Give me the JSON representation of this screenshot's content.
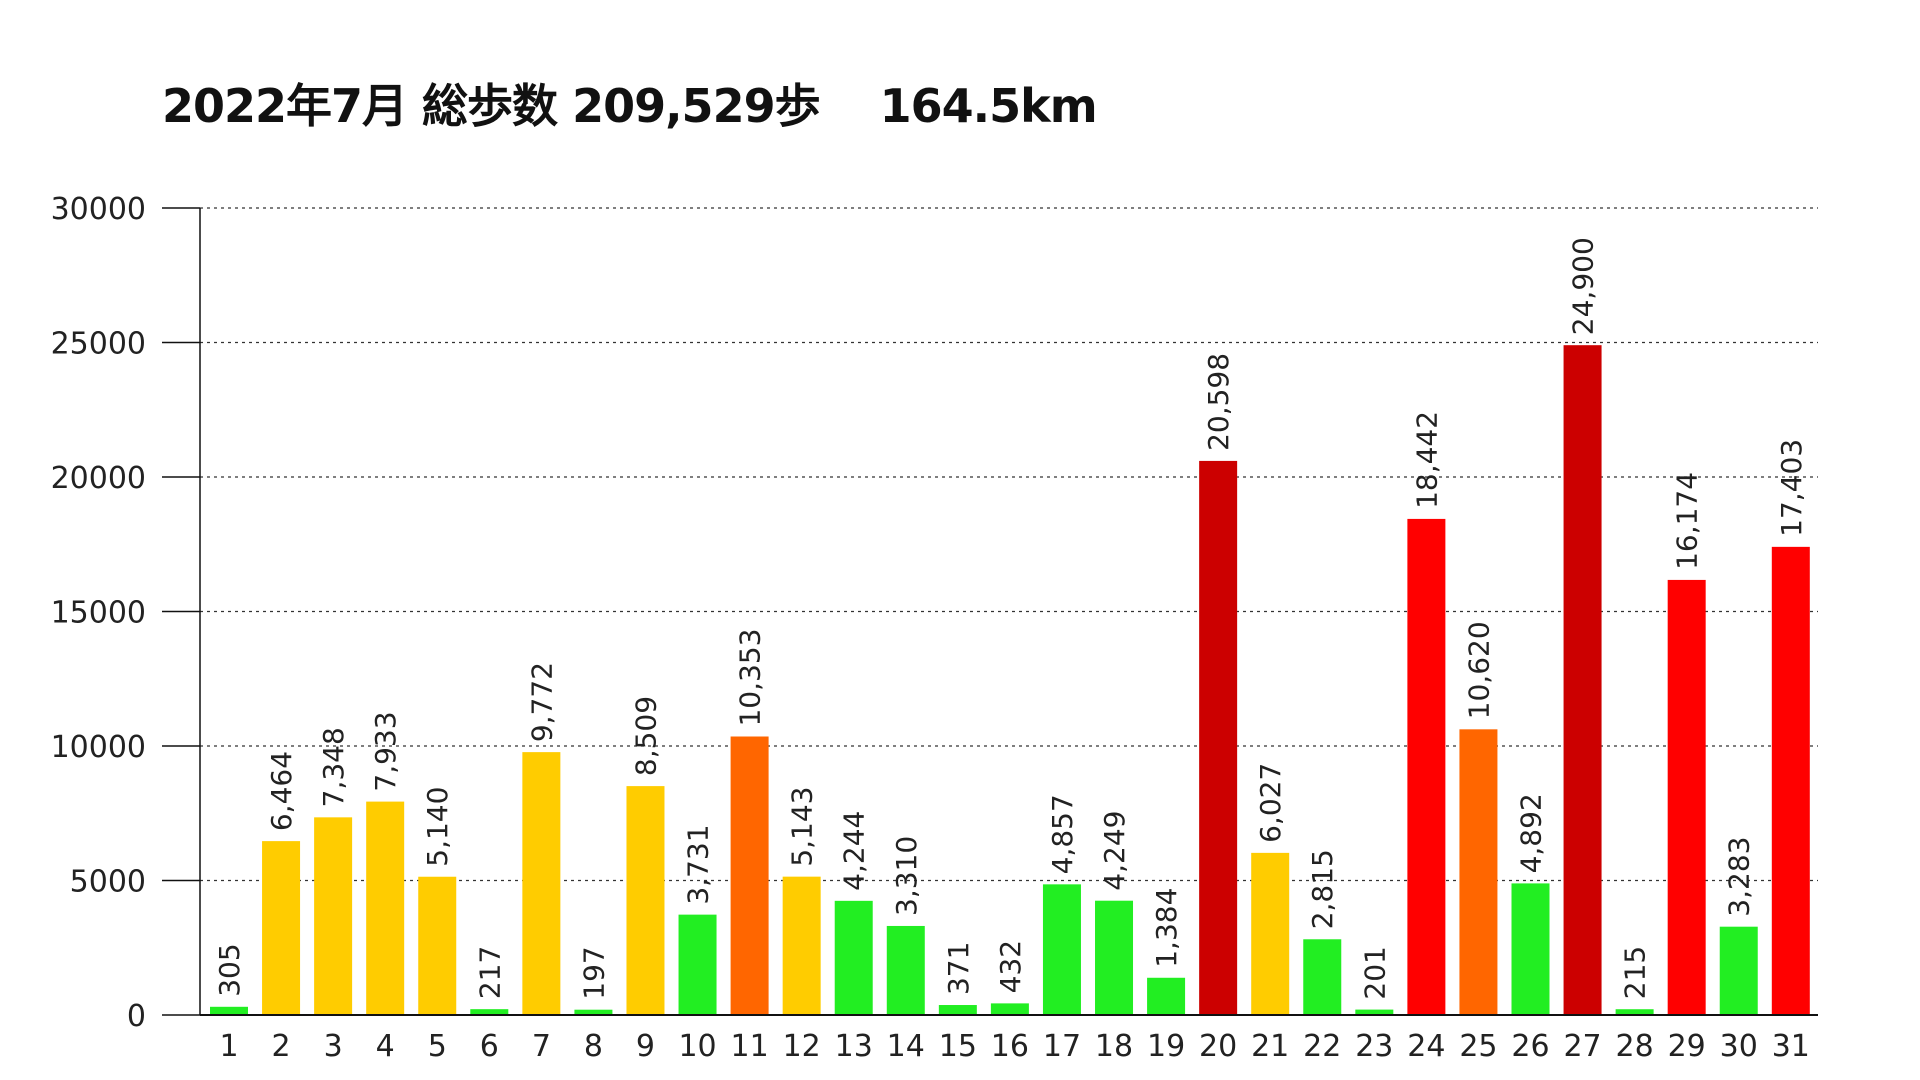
{
  "chart_data": {
    "type": "bar",
    "title": "2022年7月 総歩数 209,529歩　 164.5km",
    "xlabel": "",
    "ylabel": "",
    "ylim": [
      0,
      30000
    ],
    "yticks": [
      0,
      5000,
      10000,
      15000,
      20000,
      25000,
      30000
    ],
    "grid": true,
    "legend": "none",
    "categories": [
      "1",
      "2",
      "3",
      "4",
      "5",
      "6",
      "7",
      "8",
      "9",
      "10",
      "11",
      "12",
      "13",
      "14",
      "15",
      "16",
      "17",
      "18",
      "19",
      "20",
      "21",
      "22",
      "23",
      "24",
      "25",
      "26",
      "27",
      "28",
      "29",
      "30",
      "31"
    ],
    "values": [
      305,
      6464,
      7348,
      7933,
      5140,
      217,
      9772,
      197,
      8509,
      3731,
      10353,
      5143,
      4244,
      3310,
      371,
      432,
      4857,
      4249,
      1384,
      20598,
      6027,
      2815,
      201,
      18442,
      10620,
      4892,
      24900,
      215,
      16174,
      3283,
      17403
    ],
    "value_labels": [
      "305",
      "6,464",
      "7,348",
      "7,933",
      "5,140",
      "217",
      "9,772",
      "197",
      "8,509",
      "3,731",
      "10,353",
      "5,143",
      "4,244",
      "3,310",
      "371",
      "432",
      "4,857",
      "4,249",
      "1,384",
      "20,598",
      "6,027",
      "2,815",
      "201",
      "18,442",
      "10,620",
      "4,892",
      "24,900",
      "215",
      "16,174",
      "3,283",
      "17,403"
    ],
    "color_thresholds": [
      {
        "max": 5000,
        "color": "#22ee22"
      },
      {
        "max": 10000,
        "color": "#ffcc00"
      },
      {
        "max": 15000,
        "color": "#ff6600"
      },
      {
        "max": 20000,
        "color": "#ff0000"
      },
      {
        "max": 999999,
        "color": "#cc0000"
      }
    ],
    "axis_color": "#111111",
    "grid_color": "#333333"
  }
}
